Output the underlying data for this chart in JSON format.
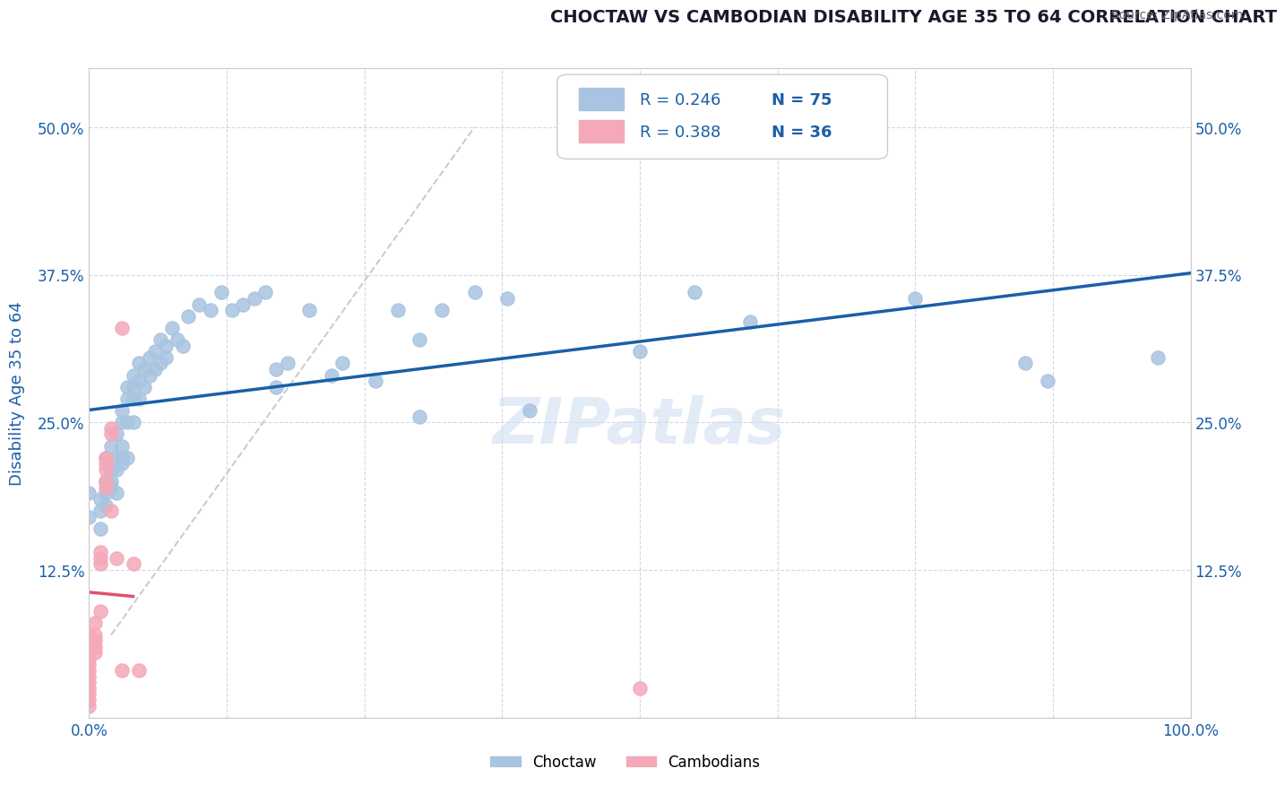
{
  "title": "CHOCTAW VS CAMBODIAN DISABILITY AGE 35 TO 64 CORRELATION CHART",
  "source_text": "Source: ZipAtlas.com",
  "ylabel": "Disability Age 35 to 64",
  "xlabel": "",
  "xlim": [
    0.0,
    1.0
  ],
  "ylim": [
    0.0,
    0.55
  ],
  "xticks": [
    0.0,
    0.125,
    0.25,
    0.375,
    0.5,
    0.625,
    0.75,
    0.875,
    1.0
  ],
  "xticklabels": [
    "0.0%",
    "",
    "",
    "",
    "",
    "",
    "",
    "",
    "100.0%"
  ],
  "yticks": [
    0.0,
    0.125,
    0.25,
    0.375,
    0.5
  ],
  "yticklabels": [
    "",
    "12.5%",
    "25.0%",
    "37.5%",
    "50.0%"
  ],
  "r_choctaw": 0.246,
  "n_choctaw": 75,
  "r_cambodian": 0.388,
  "n_cambodian": 36,
  "choctaw_color": "#a8c4e0",
  "cambodian_color": "#f4a8b8",
  "trendline_choctaw_color": "#1a5fa8",
  "trendline_cambodian_color": "#e05070",
  "diagonal_color": "#cccccc",
  "choctaw_points": [
    [
      0.0,
      0.19
    ],
    [
      0.0,
      0.17
    ],
    [
      0.01,
      0.185
    ],
    [
      0.01,
      0.175
    ],
    [
      0.01,
      0.16
    ],
    [
      0.015,
      0.2
    ],
    [
      0.015,
      0.18
    ],
    [
      0.015,
      0.19
    ],
    [
      0.015,
      0.22
    ],
    [
      0.02,
      0.2
    ],
    [
      0.02,
      0.21
    ],
    [
      0.02,
      0.23
    ],
    [
      0.02,
      0.195
    ],
    [
      0.025,
      0.22
    ],
    [
      0.025,
      0.24
    ],
    [
      0.025,
      0.19
    ],
    [
      0.025,
      0.21
    ],
    [
      0.03,
      0.22
    ],
    [
      0.03,
      0.26
    ],
    [
      0.03,
      0.25
    ],
    [
      0.03,
      0.215
    ],
    [
      0.03,
      0.23
    ],
    [
      0.035,
      0.27
    ],
    [
      0.035,
      0.28
    ],
    [
      0.035,
      0.25
    ],
    [
      0.035,
      0.22
    ],
    [
      0.04,
      0.28
    ],
    [
      0.04,
      0.29
    ],
    [
      0.04,
      0.25
    ],
    [
      0.04,
      0.27
    ],
    [
      0.045,
      0.3
    ],
    [
      0.045,
      0.27
    ],
    [
      0.045,
      0.285
    ],
    [
      0.05,
      0.295
    ],
    [
      0.05,
      0.28
    ],
    [
      0.055,
      0.305
    ],
    [
      0.055,
      0.29
    ],
    [
      0.06,
      0.31
    ],
    [
      0.06,
      0.295
    ],
    [
      0.065,
      0.32
    ],
    [
      0.065,
      0.3
    ],
    [
      0.07,
      0.315
    ],
    [
      0.07,
      0.305
    ],
    [
      0.075,
      0.33
    ],
    [
      0.08,
      0.32
    ],
    [
      0.085,
      0.315
    ],
    [
      0.09,
      0.34
    ],
    [
      0.1,
      0.35
    ],
    [
      0.11,
      0.345
    ],
    [
      0.12,
      0.36
    ],
    [
      0.13,
      0.345
    ],
    [
      0.14,
      0.35
    ],
    [
      0.15,
      0.355
    ],
    [
      0.16,
      0.36
    ],
    [
      0.17,
      0.295
    ],
    [
      0.17,
      0.28
    ],
    [
      0.18,
      0.3
    ],
    [
      0.2,
      0.345
    ],
    [
      0.22,
      0.29
    ],
    [
      0.23,
      0.3
    ],
    [
      0.26,
      0.285
    ],
    [
      0.28,
      0.345
    ],
    [
      0.3,
      0.32
    ],
    [
      0.3,
      0.255
    ],
    [
      0.32,
      0.345
    ],
    [
      0.35,
      0.36
    ],
    [
      0.38,
      0.355
    ],
    [
      0.4,
      0.26
    ],
    [
      0.5,
      0.31
    ],
    [
      0.55,
      0.36
    ],
    [
      0.6,
      0.335
    ],
    [
      0.75,
      0.355
    ],
    [
      0.85,
      0.3
    ],
    [
      0.87,
      0.285
    ],
    [
      0.97,
      0.305
    ]
  ],
  "cambodian_points": [
    [
      0.0,
      0.07
    ],
    [
      0.0,
      0.065
    ],
    [
      0.0,
      0.06
    ],
    [
      0.0,
      0.055
    ],
    [
      0.0,
      0.05
    ],
    [
      0.0,
      0.045
    ],
    [
      0.0,
      0.04
    ],
    [
      0.0,
      0.035
    ],
    [
      0.0,
      0.03
    ],
    [
      0.0,
      0.025
    ],
    [
      0.0,
      0.02
    ],
    [
      0.0,
      0.015
    ],
    [
      0.0,
      0.01
    ],
    [
      0.005,
      0.08
    ],
    [
      0.005,
      0.07
    ],
    [
      0.005,
      0.065
    ],
    [
      0.005,
      0.06
    ],
    [
      0.005,
      0.055
    ],
    [
      0.01,
      0.09
    ],
    [
      0.01,
      0.13
    ],
    [
      0.01,
      0.135
    ],
    [
      0.01,
      0.14
    ],
    [
      0.015,
      0.2
    ],
    [
      0.015,
      0.195
    ],
    [
      0.015,
      0.21
    ],
    [
      0.015,
      0.22
    ],
    [
      0.015,
      0.215
    ],
    [
      0.02,
      0.175
    ],
    [
      0.02,
      0.245
    ],
    [
      0.025,
      0.135
    ],
    [
      0.03,
      0.33
    ],
    [
      0.03,
      0.04
    ],
    [
      0.04,
      0.13
    ],
    [
      0.045,
      0.04
    ],
    [
      0.5,
      0.025
    ],
    [
      0.02,
      0.24
    ]
  ],
  "watermark_text": "ZIPatlas",
  "watermark_color": "#d0dff0",
  "watermark_alpha": 0.6,
  "legend_labels": [
    "Choctaw",
    "Cambodians"
  ],
  "title_color": "#1a1a2e",
  "axis_label_color": "#1a5fa8",
  "tick_label_color": "#1a5fa8",
  "grid_color": "#d0d8e8",
  "background_color": "#ffffff"
}
